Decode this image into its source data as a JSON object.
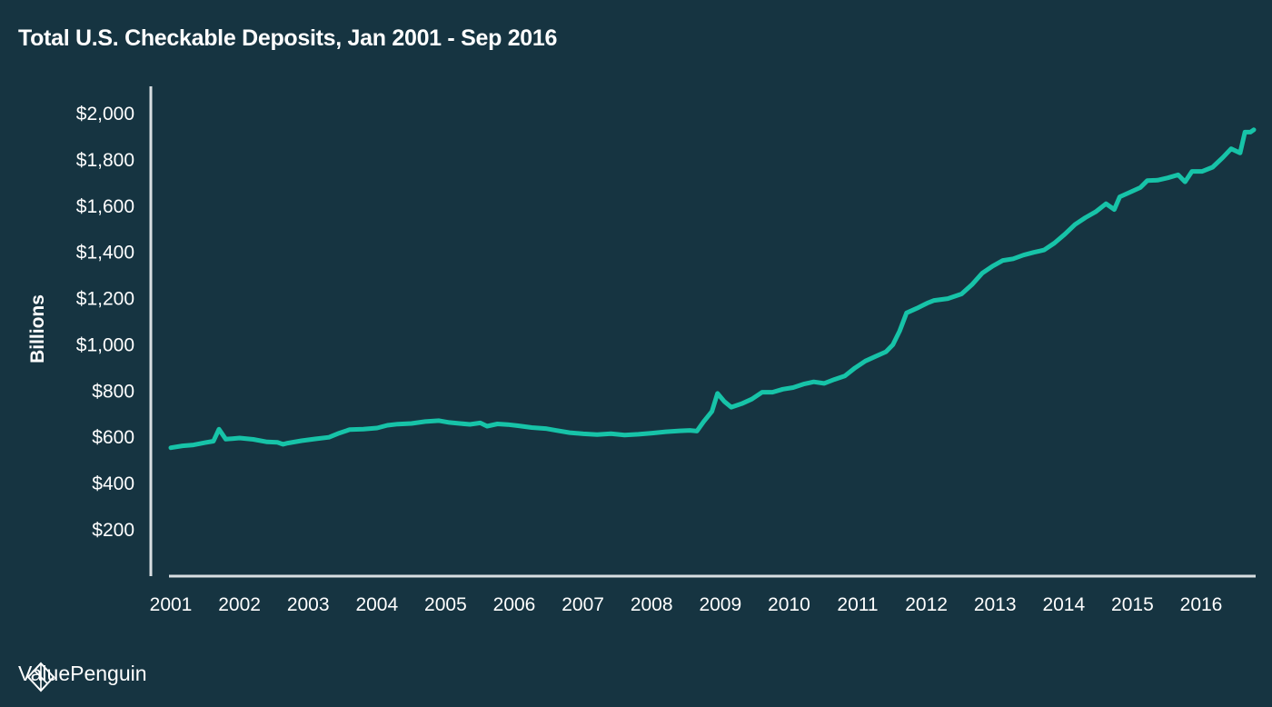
{
  "chart_data": {
    "type": "line",
    "title": "Total U.S. Checkable Deposits, Jan 2001 - Sep 2016",
    "ylabel": "Billions",
    "xlabel": "",
    "ylim": [
      0,
      2100
    ],
    "xlim": [
      2001.0,
      2016.75
    ],
    "y_ticks": [
      {
        "value": 200,
        "label": "$200"
      },
      {
        "value": 400,
        "label": "$400"
      },
      {
        "value": 600,
        "label": "$600"
      },
      {
        "value": 800,
        "label": "$800"
      },
      {
        "value": 1000,
        "label": "$1,000"
      },
      {
        "value": 1200,
        "label": "$1,200"
      },
      {
        "value": 1400,
        "label": "$1,400"
      },
      {
        "value": 1600,
        "label": "$1,600"
      },
      {
        "value": 1800,
        "label": "$1,800"
      },
      {
        "value": 2000,
        "label": "$2,000"
      }
    ],
    "x_ticks": [
      {
        "value": 2001,
        "label": "2001"
      },
      {
        "value": 2002,
        "label": "2002"
      },
      {
        "value": 2003,
        "label": "2003"
      },
      {
        "value": 2004,
        "label": "2004"
      },
      {
        "value": 2005,
        "label": "2005"
      },
      {
        "value": 2006,
        "label": "2006"
      },
      {
        "value": 2007,
        "label": "2007"
      },
      {
        "value": 2008,
        "label": "2008"
      },
      {
        "value": 2009,
        "label": "2009"
      },
      {
        "value": 2010,
        "label": "2010"
      },
      {
        "value": 2011,
        "label": "2011"
      },
      {
        "value": 2012,
        "label": "2012"
      },
      {
        "value": 2013,
        "label": "2013"
      },
      {
        "value": 2014,
        "label": "2014"
      },
      {
        "value": 2015,
        "label": "2015"
      },
      {
        "value": 2016,
        "label": "2016"
      }
    ],
    "series": [
      {
        "color": "#17c3a8",
        "points": [
          [
            2001.0,
            555
          ],
          [
            2001.17,
            563
          ],
          [
            2001.33,
            567
          ],
          [
            2001.5,
            577
          ],
          [
            2001.62,
            583
          ],
          [
            2001.7,
            635
          ],
          [
            2001.8,
            592
          ],
          [
            2002.0,
            597
          ],
          [
            2002.2,
            591
          ],
          [
            2002.4,
            580
          ],
          [
            2002.55,
            578
          ],
          [
            2002.63,
            570
          ],
          [
            2002.7,
            575
          ],
          [
            2002.9,
            585
          ],
          [
            2003.1,
            593
          ],
          [
            2003.3,
            600
          ],
          [
            2003.45,
            618
          ],
          [
            2003.6,
            633
          ],
          [
            2003.8,
            635
          ],
          [
            2004.0,
            640
          ],
          [
            2004.15,
            652
          ],
          [
            2004.3,
            657
          ],
          [
            2004.5,
            660
          ],
          [
            2004.7,
            668
          ],
          [
            2004.9,
            672
          ],
          [
            2005.05,
            664
          ],
          [
            2005.2,
            660
          ],
          [
            2005.35,
            656
          ],
          [
            2005.5,
            662
          ],
          [
            2005.6,
            648
          ],
          [
            2005.75,
            658
          ],
          [
            2005.9,
            655
          ],
          [
            2006.05,
            650
          ],
          [
            2006.25,
            642
          ],
          [
            2006.45,
            638
          ],
          [
            2006.6,
            630
          ],
          [
            2006.8,
            620
          ],
          [
            2007.0,
            615
          ],
          [
            2007.2,
            612
          ],
          [
            2007.4,
            616
          ],
          [
            2007.6,
            610
          ],
          [
            2007.8,
            613
          ],
          [
            2008.0,
            618
          ],
          [
            2008.2,
            624
          ],
          [
            2008.4,
            628
          ],
          [
            2008.55,
            630
          ],
          [
            2008.65,
            627
          ],
          [
            2008.75,
            668
          ],
          [
            2008.87,
            712
          ],
          [
            2008.95,
            790
          ],
          [
            2009.05,
            755
          ],
          [
            2009.15,
            730
          ],
          [
            2009.3,
            745
          ],
          [
            2009.45,
            765
          ],
          [
            2009.6,
            795
          ],
          [
            2009.75,
            795
          ],
          [
            2009.9,
            808
          ],
          [
            2010.05,
            815
          ],
          [
            2010.2,
            830
          ],
          [
            2010.35,
            840
          ],
          [
            2010.5,
            833
          ],
          [
            2010.65,
            850
          ],
          [
            2010.8,
            865
          ],
          [
            2010.95,
            900
          ],
          [
            2011.1,
            930
          ],
          [
            2011.25,
            950
          ],
          [
            2011.4,
            970
          ],
          [
            2011.5,
            1000
          ],
          [
            2011.6,
            1060
          ],
          [
            2011.7,
            1138
          ],
          [
            2011.85,
            1158
          ],
          [
            2012.0,
            1180
          ],
          [
            2012.1,
            1192
          ],
          [
            2012.3,
            1200
          ],
          [
            2012.5,
            1220
          ],
          [
            2012.65,
            1260
          ],
          [
            2012.8,
            1310
          ],
          [
            2012.95,
            1340
          ],
          [
            2013.1,
            1365
          ],
          [
            2013.25,
            1372
          ],
          [
            2013.4,
            1388
          ],
          [
            2013.55,
            1400
          ],
          [
            2013.7,
            1410
          ],
          [
            2013.85,
            1440
          ],
          [
            2014.0,
            1478
          ],
          [
            2014.15,
            1520
          ],
          [
            2014.3,
            1550
          ],
          [
            2014.45,
            1575
          ],
          [
            2014.6,
            1610
          ],
          [
            2014.72,
            1585
          ],
          [
            2014.8,
            1640
          ],
          [
            2014.95,
            1660
          ],
          [
            2015.1,
            1680
          ],
          [
            2015.2,
            1710
          ],
          [
            2015.35,
            1712
          ],
          [
            2015.5,
            1722
          ],
          [
            2015.65,
            1735
          ],
          [
            2015.75,
            1705
          ],
          [
            2015.85,
            1750
          ],
          [
            2016.0,
            1750
          ],
          [
            2016.15,
            1768
          ],
          [
            2016.3,
            1810
          ],
          [
            2016.42,
            1848
          ],
          [
            2016.55,
            1830
          ],
          [
            2016.62,
            1920
          ],
          [
            2016.7,
            1920
          ],
          [
            2016.75,
            1930
          ]
        ]
      }
    ]
  },
  "footer": {
    "brand_text": "ValuePenguin",
    "logo_icon": "penguin-diamond-icon"
  }
}
